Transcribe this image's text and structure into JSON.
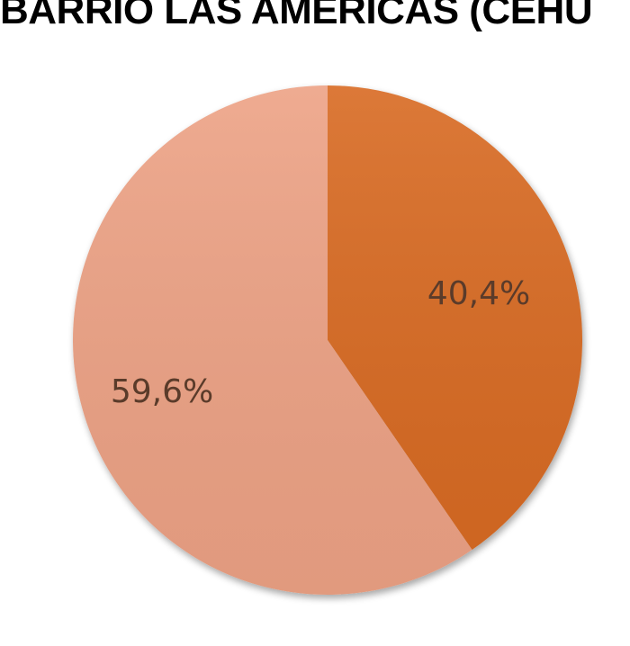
{
  "chart_data": {
    "type": "pie",
    "title": "BARRIO LAS AMERICAS (CEHU",
    "slices": [
      {
        "value": 40.4,
        "label": "40,4%",
        "color": "#d86a22"
      },
      {
        "value": 59.6,
        "label": "59,6%",
        "color": "#eda285"
      }
    ],
    "start_angle_deg": 0,
    "direction": "clockwise",
    "legend": "none"
  }
}
